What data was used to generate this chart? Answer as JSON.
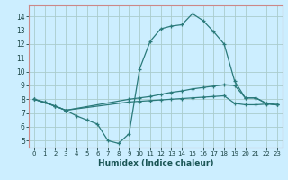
{
  "xlabel": "Humidex (Indice chaleur)",
  "bg_color": "#cceeff",
  "grid_color": "#aacccc",
  "line_color": "#2a7a7a",
  "spine_color": "#ff9999",
  "xlim": [
    -0.5,
    23.5
  ],
  "ylim": [
    4.5,
    14.8
  ],
  "xticks": [
    0,
    1,
    2,
    3,
    4,
    5,
    6,
    7,
    8,
    9,
    10,
    11,
    12,
    13,
    14,
    15,
    16,
    17,
    18,
    19,
    20,
    21,
    22,
    23
  ],
  "yticks": [
    5,
    6,
    7,
    8,
    9,
    10,
    11,
    12,
    13,
    14
  ],
  "line1_x": [
    0,
    1,
    2,
    3,
    4,
    5,
    6,
    7,
    8,
    9,
    10,
    11,
    12,
    13,
    14,
    15,
    16,
    17,
    18,
    19,
    20,
    21,
    22,
    23
  ],
  "line1_y": [
    8.0,
    7.8,
    7.5,
    7.2,
    6.8,
    6.5,
    6.2,
    5.0,
    4.8,
    5.5,
    10.2,
    12.2,
    13.1,
    13.3,
    13.4,
    14.2,
    13.7,
    12.9,
    12.0,
    9.3,
    8.1,
    8.1,
    7.7,
    7.6
  ],
  "line2_x": [
    0,
    2,
    3,
    9,
    10,
    11,
    12,
    13,
    14,
    15,
    16,
    17,
    18,
    19,
    20,
    21,
    22,
    23
  ],
  "line2_y": [
    8.0,
    7.5,
    7.2,
    8.0,
    8.1,
    8.2,
    8.35,
    8.5,
    8.6,
    8.75,
    8.85,
    8.95,
    9.05,
    9.0,
    8.1,
    8.1,
    7.7,
    7.6
  ],
  "line3_x": [
    0,
    2,
    3,
    9,
    10,
    11,
    12,
    13,
    14,
    15,
    16,
    17,
    18,
    19,
    20,
    21,
    22,
    23
  ],
  "line3_y": [
    8.0,
    7.5,
    7.2,
    7.8,
    7.85,
    7.9,
    7.95,
    8.0,
    8.05,
    8.1,
    8.15,
    8.2,
    8.25,
    7.7,
    7.6,
    7.6,
    7.65,
    7.6
  ]
}
